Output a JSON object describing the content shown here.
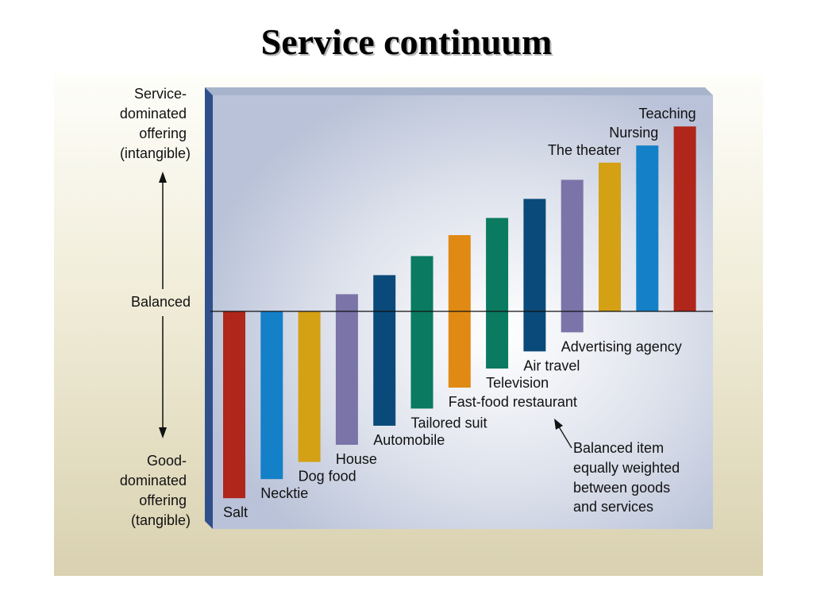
{
  "slide": {
    "title": "Service continuum"
  },
  "chart_data": {
    "type": "bar",
    "title": "",
    "axis": {
      "top_label": [
        "Service-",
        "dominated",
        "offering",
        "(intangible)"
      ],
      "middle_label": "Balanced",
      "bottom_label": [
        "Good-",
        "dominated",
        "offering",
        "(tangible)"
      ]
    },
    "ylim": [
      -1,
      1
    ],
    "baseline": 0,
    "grid": false,
    "legend": "none",
    "categories": [
      "Salt",
      "Necktie",
      "Dog food",
      "House",
      "Automobile",
      "Tailored suit",
      "Fast-food restaurant",
      "Television",
      "Air travel",
      "Advertising agency",
      "The theater",
      "Nursing",
      "Teaching"
    ],
    "bars": [
      {
        "label": "Salt",
        "low": -0.98,
        "high": 0.0,
        "color": "#b0261a"
      },
      {
        "label": "Necktie",
        "low": -0.88,
        "high": 0.0,
        "color": "#1480c8"
      },
      {
        "label": "Dog food",
        "low": -0.79,
        "high": 0.0,
        "color": "#d4a014"
      },
      {
        "label": "House",
        "low": -0.7,
        "high": 0.09,
        "color": "#7a74a8"
      },
      {
        "label": "Automobile",
        "low": -0.6,
        "high": 0.19,
        "color": "#0a4a7a"
      },
      {
        "label": "Tailored suit",
        "low": -0.51,
        "high": 0.29,
        "color": "#0a7a60"
      },
      {
        "label": "Fast-food restaurant",
        "low": -0.4,
        "high": 0.4,
        "color": "#e08a14"
      },
      {
        "label": "Television",
        "low": -0.3,
        "high": 0.49,
        "color": "#0a7a60"
      },
      {
        "label": "Air travel",
        "low": -0.21,
        "high": 0.59,
        "color": "#0a4a7a"
      },
      {
        "label": "Advertising agency",
        "low": -0.11,
        "high": 0.69,
        "color": "#7a74a8"
      },
      {
        "label": "The theater",
        "low": 0.0,
        "high": 0.78,
        "color": "#d4a014"
      },
      {
        "label": "Nursing",
        "low": 0.0,
        "high": 0.87,
        "color": "#1480c8"
      },
      {
        "label": "Teaching",
        "low": 0.0,
        "high": 0.97,
        "color": "#b0261a"
      }
    ],
    "annotation": {
      "lines": [
        "Balanced item",
        "equally weighted",
        "between goods",
        "and services"
      ],
      "points_to": "Fast-food restaurant"
    },
    "colors": {
      "panel_top": "#a8b4cc",
      "panel_side": "#30508c"
    }
  }
}
